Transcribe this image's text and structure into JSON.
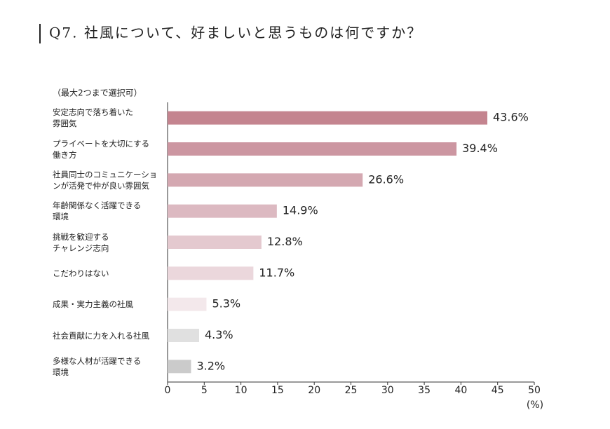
{
  "chart_data": {
    "type": "bar",
    "orientation": "horizontal",
    "title": "Q7. 社風について、好ましいと思うものは何ですか？",
    "note": "（最大2つまで選択可）",
    "categories": [
      "安定志向で落ち着いた\n雰囲気",
      "プライベートを大切にする\n働き方",
      "社員同士のコミュニケーショ\nンが活発で仲が良い雰囲気",
      "年齢関係なく活躍できる\n環境",
      "挑戦を歓迎する\nチャレンジ志向",
      "こだわりはない",
      "成果・実力主義の社風",
      "社会貢献に力を入れる社風",
      "多様な人材が活躍できる\n環境"
    ],
    "values": [
      43.6,
      39.4,
      26.6,
      14.9,
      12.8,
      11.7,
      5.3,
      4.3,
      3.2
    ],
    "value_labels": [
      "43.6%",
      "39.4%",
      "26.6%",
      "14.9%",
      "12.8%",
      "11.7%",
      "5.3%",
      "4.3%",
      "3.2%"
    ],
    "colors": [
      "#c4848f",
      "#cc96a1",
      "#d4a8b1",
      "#dcb9c1",
      "#e4c9cf",
      "#ebd7dc",
      "#f3e8eb",
      "#e0e0e0",
      "#cbcbcb"
    ],
    "xlim": [
      0,
      50
    ],
    "xticks": [
      0,
      5,
      10,
      15,
      20,
      25,
      30,
      35,
      40,
      45,
      50
    ],
    "x_label": "(%)",
    "grid": false
  }
}
